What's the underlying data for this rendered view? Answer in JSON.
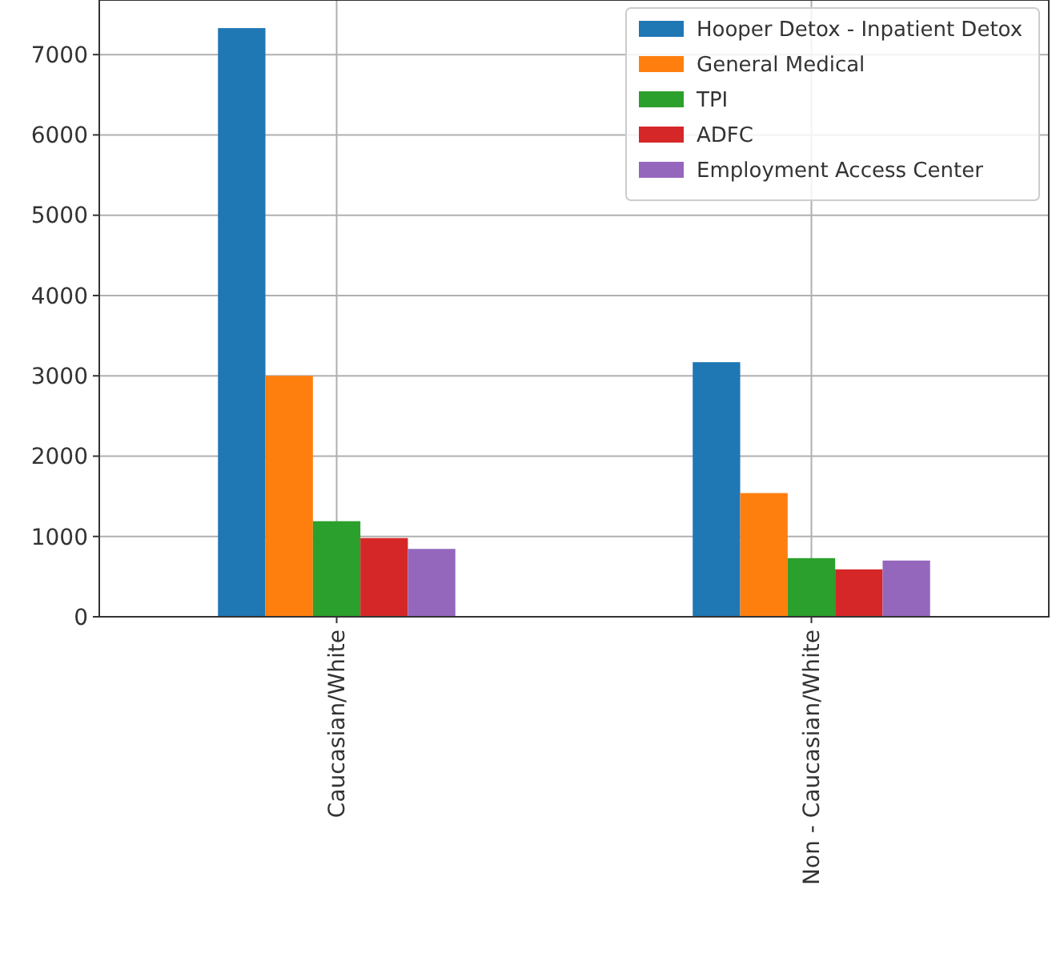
{
  "chart_data": {
    "type": "bar",
    "categories": [
      "Caucasian/White",
      "Non - Caucasian/White"
    ],
    "series": [
      {
        "name": "Hooper Detox - Inpatient Detox",
        "color": "#1f77b4",
        "values": [
          7330,
          3170
        ]
      },
      {
        "name": "General Medical",
        "color": "#ff7f0e",
        "values": [
          3000,
          1540
        ]
      },
      {
        "name": "TPI",
        "color": "#2ca02c",
        "values": [
          1190,
          730
        ]
      },
      {
        "name": "ADFC",
        "color": "#d62728",
        "values": [
          980,
          590
        ]
      },
      {
        "name": "Employment Access Center",
        "color": "#9467bd",
        "values": [
          845,
          700
        ]
      }
    ],
    "ylim": [
      0,
      7680
    ],
    "yticks": [
      0,
      1000,
      2000,
      3000,
      4000,
      5000,
      6000,
      7000
    ],
    "grid": true,
    "legend": "top right"
  }
}
